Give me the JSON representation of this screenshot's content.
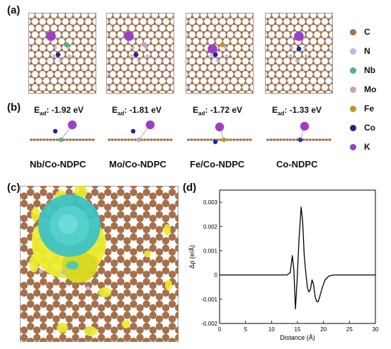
{
  "panels": {
    "a": "(a)",
    "b": "(b)",
    "c": "(c)",
    "d": "(d)"
  },
  "legend": [
    {
      "label": "C",
      "color": "#a5704c"
    },
    {
      "label": "N",
      "color": "#b9b9e6"
    },
    {
      "label": "Nb",
      "color": "#52b07e"
    },
    {
      "label": "Mo",
      "color": "#c99fc4"
    },
    {
      "label": "Fe",
      "color": "#c9921c"
    },
    {
      "label": "Co",
      "color": "#22229e"
    },
    {
      "label": "K",
      "color": "#9a40c8"
    }
  ],
  "systems": [
    {
      "name": "Nb/Co-NDPC",
      "ead_label": "E",
      "ead_sub": "ad",
      "ead_value": ": -1.92 eV",
      "dopant": "Nb"
    },
    {
      "name": "Mo/Co-NDPC",
      "ead_label": "E",
      "ead_sub": "ad",
      "ead_value": ": -1.81 eV",
      "dopant": "Mo"
    },
    {
      "name": "Fe/Co-NDPC",
      "ead_label": "E",
      "ead_sub": "ad",
      "ead_value": ": -1.72 eV",
      "dopant": "Fe"
    },
    {
      "name": "Co-NDPC",
      "ead_label": "E",
      "ead_sub": "ad",
      "ead_value": ": -1.33 eV",
      "dopant": ""
    }
  ],
  "colors": {
    "density": "#ecec30",
    "depletion": "#3cc3c3",
    "curve": "#000000"
  },
  "chart_data": {
    "type": "line",
    "title": "",
    "xlabel": "Distance (Å)",
    "ylabel": "Δρ (e/Å)",
    "xlim": [
      0,
      30
    ],
    "ylim": [
      -0.002,
      0.0035
    ],
    "xticks": [
      0,
      5,
      10,
      15,
      20,
      25,
      30
    ],
    "yticks": [
      -0.002,
      -0.001,
      0,
      0.001,
      0.002,
      0.003
    ],
    "ytick_labels": [
      "-0.002",
      "-0.001",
      "0",
      "0.001",
      "0.002",
      "0.003"
    ],
    "grid": false,
    "series": [
      {
        "name": "",
        "x": [
          0,
          10,
          13,
          13.6,
          14.0,
          14.3,
          14.6,
          14.9,
          15.3,
          15.7,
          16.0,
          16.3,
          16.6,
          16.9,
          17.2,
          17.5,
          17.8,
          18.1,
          18.4,
          18.7,
          19.0,
          19.4,
          19.8,
          20.3,
          21,
          22,
          30
        ],
        "y": [
          0,
          0,
          0,
          0.0001,
          0.0008,
          0.0002,
          -0.0014,
          -0.0003,
          0.0015,
          0.0028,
          0.0022,
          0.0008,
          0.0001,
          -0.0005,
          -0.0007,
          -0.0006,
          -0.0002,
          -0.0004,
          -0.0009,
          -0.0011,
          -0.0011,
          -0.0008,
          -0.0005,
          -0.0002,
          -5e-05,
          0,
          0
        ]
      }
    ]
  }
}
